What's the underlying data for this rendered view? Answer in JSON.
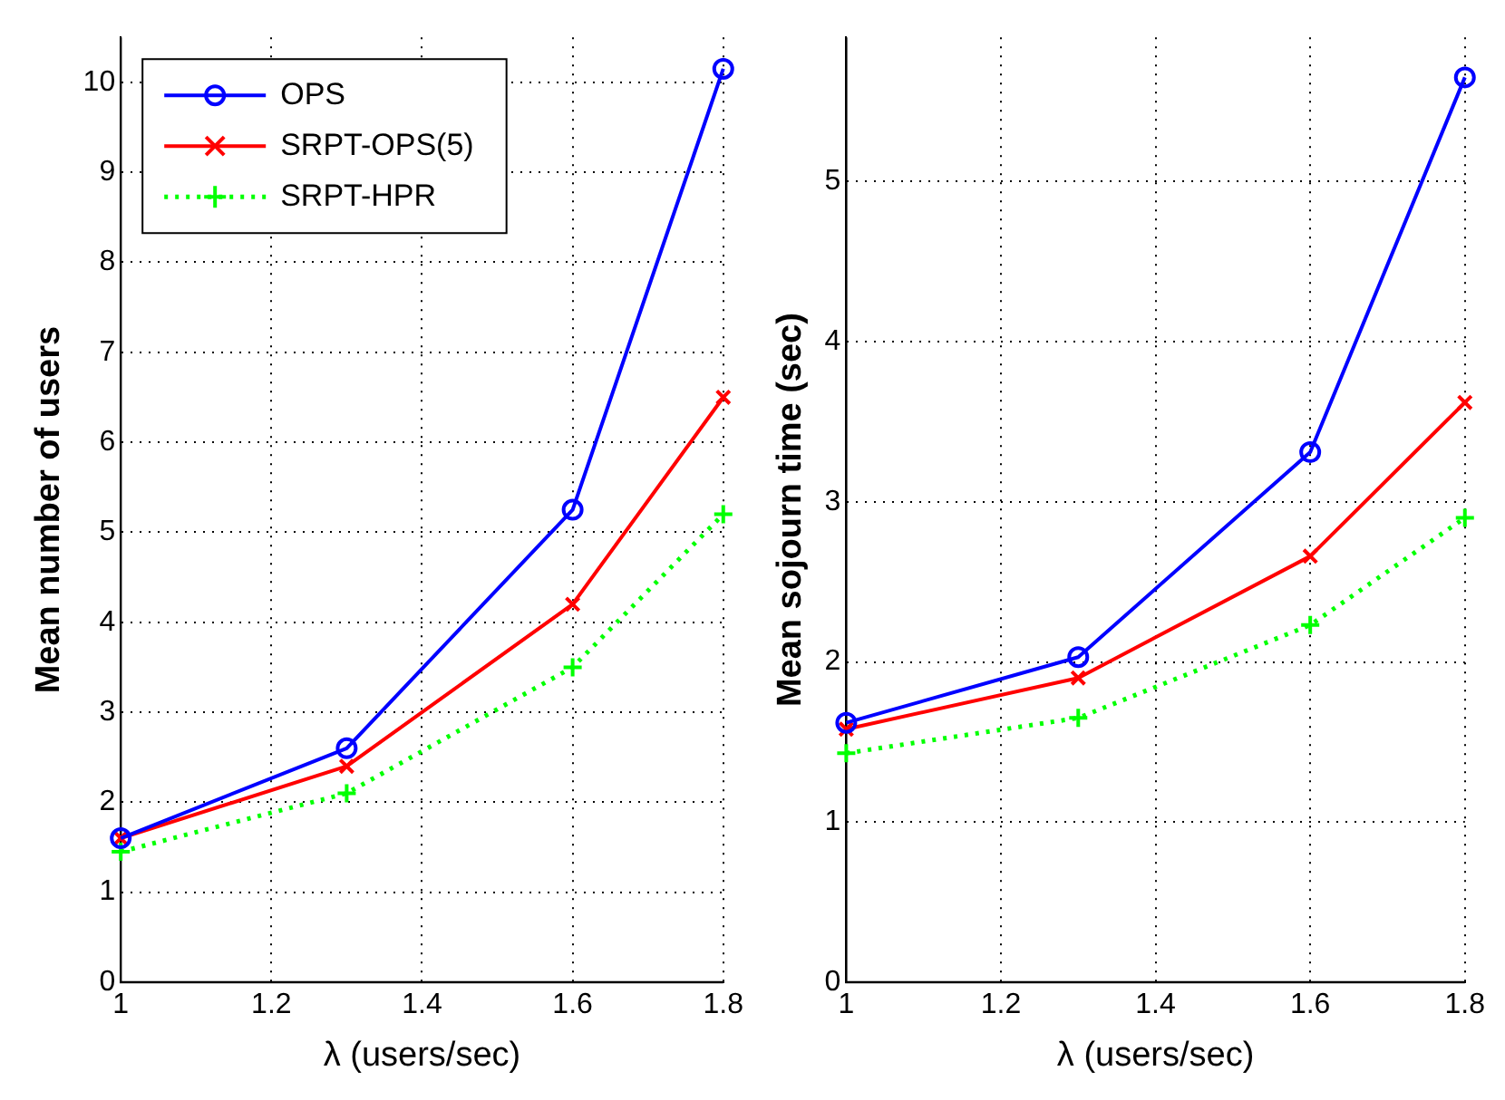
{
  "chart_data": [
    {
      "type": "line",
      "xlabel": "λ (users/sec)",
      "ylabel": "Mean number of users",
      "x": [
        1,
        1.3,
        1.6,
        1.8
      ],
      "series": [
        {
          "name": "OPS",
          "color": "#0000ff",
          "values": [
            1.6,
            2.6,
            5.25,
            10.15
          ],
          "marker": "circle",
          "line_style": "solid"
        },
        {
          "name": "SRPT-OPS(5)",
          "color": "#ff0000",
          "values": [
            1.6,
            2.4,
            4.2,
            6.5
          ],
          "marker": "cross",
          "line_style": "solid"
        },
        {
          "name": "SRPT-HPR",
          "color": "#00ff00",
          "values": [
            1.45,
            2.1,
            3.5,
            5.2
          ],
          "marker": "plus",
          "line_style": "dotted"
        }
      ],
      "xlim": [
        1,
        1.8
      ],
      "xticks": [
        1,
        1.2,
        1.4,
        1.6,
        1.8
      ],
      "ylim": [
        0,
        10.5
      ],
      "yticks": [
        0,
        1,
        2,
        3,
        4,
        5,
        6,
        7,
        8,
        9,
        10
      ],
      "grid": true,
      "legend": "top left"
    },
    {
      "type": "line",
      "xlabel": "λ (users/sec)",
      "ylabel": "Mean sojourn time (sec)",
      "x": [
        1,
        1.3,
        1.6,
        1.8
      ],
      "series": [
        {
          "color": "#0000ff",
          "values": [
            1.62,
            2.03,
            3.31,
            5.65
          ],
          "marker": "circle",
          "line_style": "solid"
        },
        {
          "color": "#ff0000",
          "values": [
            1.58,
            1.9,
            2.66,
            3.62
          ],
          "marker": "cross",
          "line_style": "solid"
        },
        {
          "color": "#00ff00",
          "values": [
            1.43,
            1.65,
            2.23,
            2.9
          ],
          "marker": "plus",
          "line_style": "dotted"
        }
      ],
      "xlim": [
        1,
        1.8
      ],
      "xticks": [
        1,
        1.2,
        1.4,
        1.6,
        1.8
      ],
      "ylim": [
        0,
        5.9
      ],
      "yticks": [
        0,
        1,
        2,
        3,
        4,
        5
      ],
      "grid": true,
      "legend": false
    }
  ]
}
